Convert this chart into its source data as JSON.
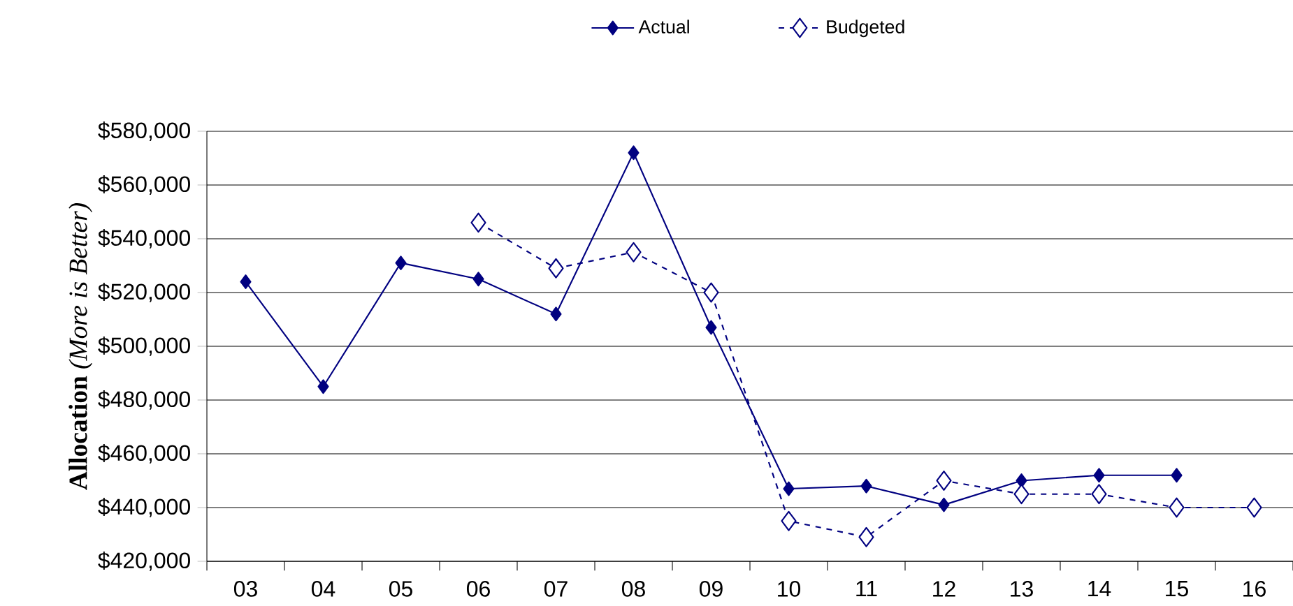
{
  "chart_data": {
    "type": "line",
    "ylabel": "**Allocation** *(More is Better)*",
    "categories": [
      "03",
      "04",
      "05",
      "06",
      "07",
      "08",
      "09",
      "10",
      "11",
      "12",
      "13",
      "14",
      "15",
      "16"
    ],
    "series": [
      {
        "name": "Actual",
        "color": "#000080",
        "line_style": "solid",
        "values": [
          524000,
          485000,
          531000,
          525000,
          512000,
          572000,
          507000,
          447000,
          448000,
          441000,
          450000,
          452000,
          452000,
          null
        ]
      },
      {
        "name": "Budgeted",
        "color": "#000080",
        "line_style": "dashed",
        "values": [
          null,
          null,
          null,
          546000,
          529000,
          535000,
          520000,
          435000,
          429000,
          450000,
          445000,
          445000,
          440000,
          440000
        ]
      }
    ],
    "ylim": [
      420000,
      580000
    ],
    "yticks": [
      {
        "value": 420000,
        "label": "$420,000"
      },
      {
        "value": 440000,
        "label": "$440,000"
      },
      {
        "value": 460000,
        "label": "$460,000"
      },
      {
        "value": 480000,
        "label": "$480,000"
      },
      {
        "value": 500000,
        "label": "$500,000"
      },
      {
        "value": 520000,
        "label": "$520,000"
      },
      {
        "value": 540000,
        "label": "$540,000"
      },
      {
        "value": 560000,
        "label": "$560,000"
      },
      {
        "value": 580000,
        "label": "$580,000"
      }
    ],
    "grid": "y",
    "legend": "top",
    "marker": "diamond"
  }
}
